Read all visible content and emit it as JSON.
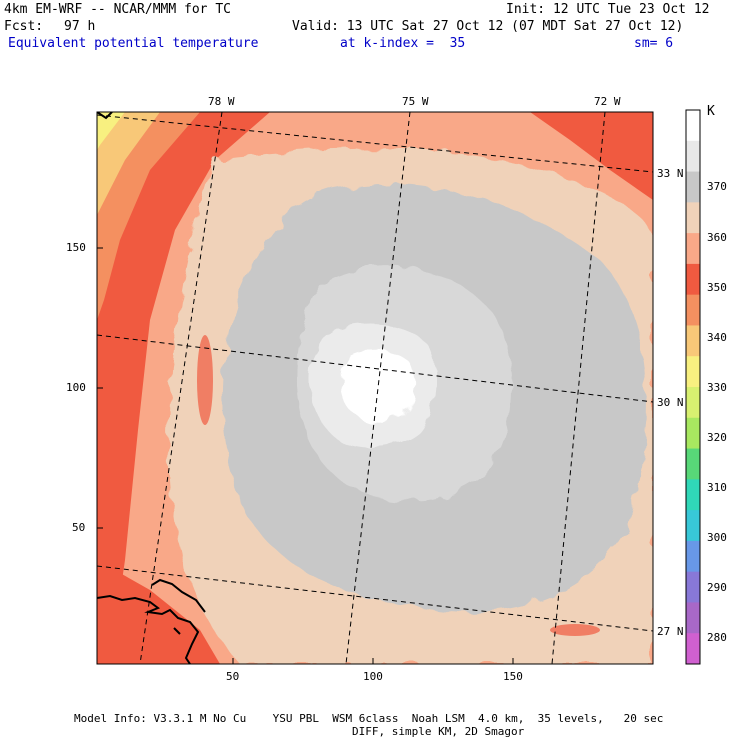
{
  "header": {
    "model": "4km EM-WRF -- NCAR/MMM for TC",
    "init": "Init: 12 UTC Tue 23 Oct 12",
    "fcst_label": "Fcst:",
    "fcst_value": "97 h",
    "valid": "Valid: 13 UTC Sat 27 Oct 12 (07 MDT Sat 27 Oct 12)",
    "field": "Equivalent potential temperature",
    "level": "at k-index =  35",
    "smooth": "sm= 6"
  },
  "colorbar": {
    "unit": "K",
    "labels": [
      "370",
      "360",
      "350",
      "340",
      "330",
      "320",
      "310",
      "300",
      "290",
      "280"
    ],
    "colors": [
      "#ffffff",
      "#e8e8e8",
      "#c8c8c8",
      "#f0d2b9",
      "#f9a888",
      "#f05a40",
      "#f49060",
      "#f8c878",
      "#f8f080",
      "#d8f070",
      "#a8e860",
      "#58d878",
      "#30d8b8",
      "#38c8d8",
      "#6898e8",
      "#8878d8",
      "#a868c8",
      "#d060d0"
    ]
  },
  "axes": {
    "x_ticks": [
      "50",
      "100",
      "150"
    ],
    "y_ticks": [
      "150",
      "100",
      "50"
    ],
    "lon_labels": [
      "78 W",
      "75 W",
      "72 W"
    ],
    "lat_labels": [
      "33 N",
      "30 N",
      "27 N"
    ]
  },
  "footer": {
    "line1": "Model Info: V3.3.1 M No Cu    YSU PBL  WSM 6class  Noah LSM  4.0 km,  35 levels,   20 sec",
    "line2": "DIFF, simple KM, 2D Smagor"
  }
}
